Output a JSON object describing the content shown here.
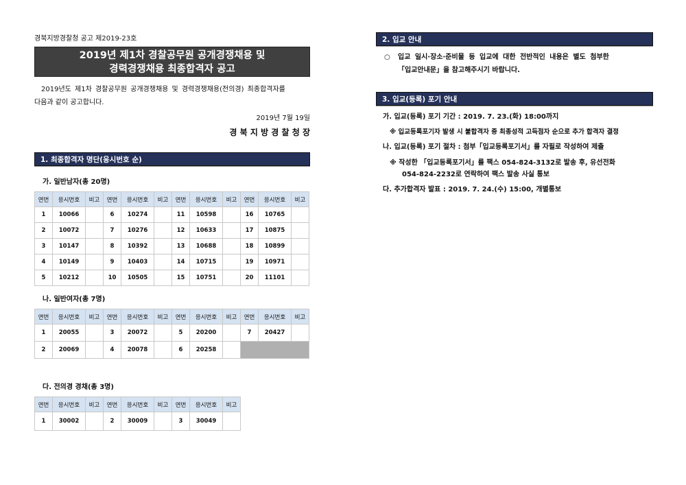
{
  "header": {
    "notice_no": "경북지방경찰청 공고 제2019-23호",
    "title_line1": "2019년 제1차 경찰공무원 공개경쟁채용 및",
    "title_line2": "경력경쟁채용 최종합격자 공고",
    "intro_line1": "2019년도 제1차 경찰공무원 공개경쟁채용 및 경력경쟁채용(전의경) 최종합격자를",
    "intro_line2": "다음과 같이 공고합니다.",
    "date": "2019년  7월  19일",
    "issuer": "경 북 지 방 경 찰 청 장"
  },
  "section1": {
    "title": "1. 최종합격자 명단(응시번호 순)",
    "columns": [
      "연번",
      "응시번호",
      "비고"
    ],
    "male": {
      "title": "가. 일반남자(총 20명)",
      "rows": [
        [
          [
            "1",
            "10066"
          ],
          [
            "6",
            "10274"
          ],
          [
            "11",
            "10598"
          ],
          [
            "16",
            "10765"
          ]
        ],
        [
          [
            "2",
            "10072"
          ],
          [
            "7",
            "10276"
          ],
          [
            "12",
            "10633"
          ],
          [
            "17",
            "10875"
          ]
        ],
        [
          [
            "3",
            "10147"
          ],
          [
            "8",
            "10392"
          ],
          [
            "13",
            "10688"
          ],
          [
            "18",
            "10899"
          ]
        ],
        [
          [
            "4",
            "10149"
          ],
          [
            "9",
            "10403"
          ],
          [
            "14",
            "10715"
          ],
          [
            "19",
            "10971"
          ]
        ],
        [
          [
            "5",
            "10212"
          ],
          [
            "10",
            "10505"
          ],
          [
            "15",
            "10751"
          ],
          [
            "20",
            "11101"
          ]
        ]
      ]
    },
    "female": {
      "title": "나. 일반여자(총 7명)",
      "rows": [
        [
          [
            "1",
            "20055"
          ],
          [
            "3",
            "20072"
          ],
          [
            "5",
            "20200"
          ],
          [
            "7",
            "20427"
          ]
        ],
        [
          [
            "2",
            "20069"
          ],
          [
            "4",
            "20078"
          ],
          [
            "6",
            "20258"
          ],
          null
        ]
      ]
    },
    "veteran": {
      "title": "다. 전의경 경채(총 3명)",
      "rows": [
        [
          [
            "1",
            "30002"
          ],
          [
            "2",
            "30009"
          ],
          [
            "3",
            "30049"
          ]
        ]
      ]
    }
  },
  "section2": {
    "title": "2. 입교 안내",
    "bullet": "○",
    "line1": "입교 일시·장소·준비물 등 입교에 대한 전반적인 내용은 별도 첨부한",
    "line2": "「입교안내문」을 참고해주시기 바랍니다."
  },
  "section3": {
    "title": "3. 입교(등록) 포기 안내",
    "item1": "가. 입교(등록) 포기 기간 : 2019. 7. 23.(화) 18:00까지",
    "note1": "※ 입교등록포기자 발생 시 불합격자 중 최종성적 고득점자 순으로 추가 합격자 결정",
    "item2": "나. 입교(등록) 포기 절차 : 첨부「입교등록포기서」를 자필로 작성하여 제출",
    "note2_line1": "※ 작성한 「입교등록포기서」를 팩스 054-824-3132로 발송 후, 유선전화",
    "note2_line2": "054-824-2232로 연락하여 팩스 발송 사실 통보",
    "item3": "다. 추가합격자 발표 : 2019. 7. 24.(수) 15:00, 개별통보"
  }
}
